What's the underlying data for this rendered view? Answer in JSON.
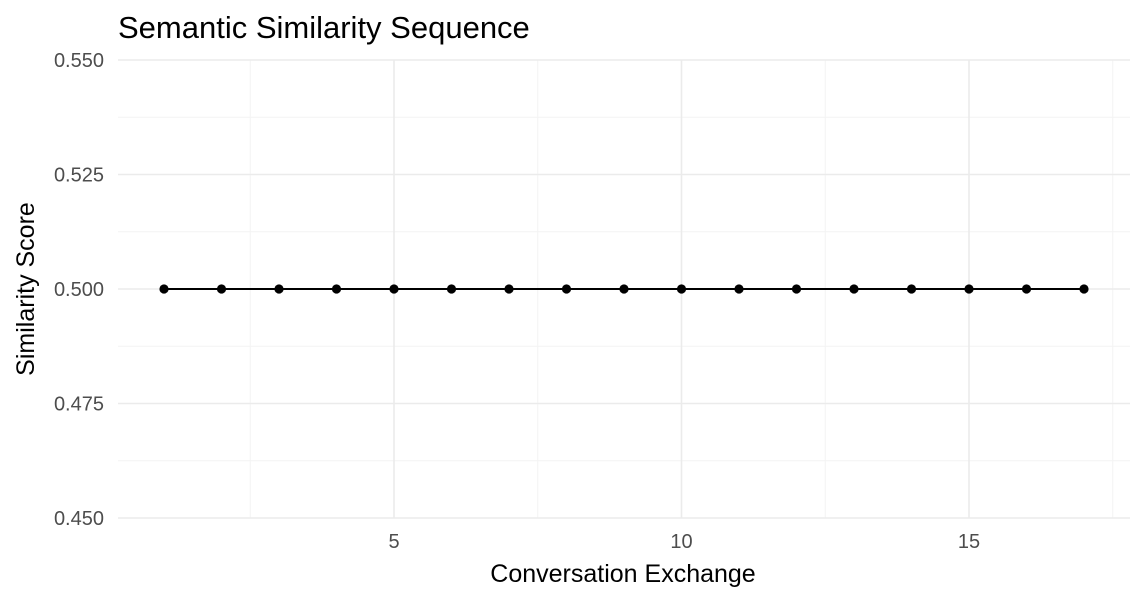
{
  "chart_data": {
    "type": "line",
    "title": "Semantic Similarity Sequence",
    "xlabel": "Conversation Exchange",
    "ylabel": "Similarity Score",
    "xlim": [
      0.2,
      17.8
    ],
    "ylim": [
      0.45,
      0.55
    ],
    "x_ticks": [
      5,
      10,
      15
    ],
    "x_tick_labels": [
      "5",
      "10",
      "15"
    ],
    "x_minor_ticks": [
      2.5,
      7.5,
      12.5,
      17.5
    ],
    "y_ticks": [
      0.45,
      0.475,
      0.5,
      0.525,
      0.55
    ],
    "y_tick_labels": [
      "0.450",
      "0.475",
      "0.500",
      "0.525",
      "0.550"
    ],
    "y_minor_ticks": [
      0.4625,
      0.4875,
      0.5125,
      0.5375
    ],
    "grid": true,
    "colors": {
      "series": "#000000",
      "grid": "#ebebeb",
      "tick_text": "#4d4d4d"
    },
    "series": [
      {
        "x": [
          1,
          2,
          3,
          4,
          5,
          6,
          7,
          8,
          9,
          10,
          11,
          12,
          13,
          14,
          15,
          16,
          17
        ],
        "y": [
          0.5,
          0.5,
          0.5,
          0.5,
          0.5,
          0.5,
          0.5,
          0.5,
          0.5,
          0.5,
          0.5,
          0.5,
          0.5,
          0.5,
          0.5,
          0.5,
          0.5
        ]
      }
    ]
  }
}
